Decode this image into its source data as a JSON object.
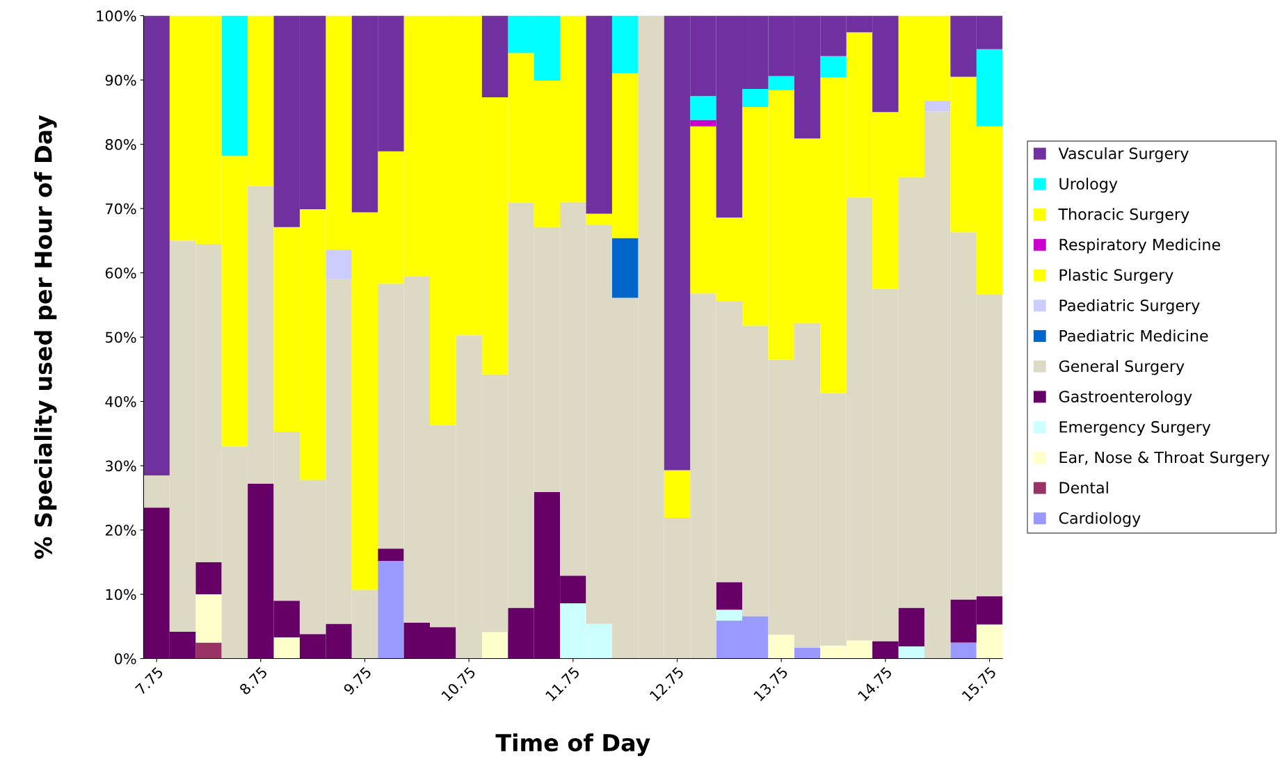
{
  "chart_data": {
    "type": "bar",
    "stacked": true,
    "xlabel": "Time of Day",
    "ylabel": "% Speciality used per Hour of Day",
    "categories": [
      "7.75",
      null,
      null,
      null,
      "8.75",
      null,
      null,
      null,
      "9.75",
      null,
      null,
      null,
      "10.75",
      null,
      null,
      null,
      "11.75",
      null,
      null,
      null,
      "12.75",
      null,
      null,
      null,
      "13.75",
      null,
      null,
      null,
      "14.75",
      null,
      null,
      null,
      "15.75"
    ],
    "ylim": [
      0,
      100
    ],
    "yticks": [
      {
        "value": 0,
        "label": "0%"
      },
      {
        "value": 10,
        "label": "10%"
      },
      {
        "value": 20,
        "label": "20%"
      },
      {
        "value": 30,
        "label": "30%"
      },
      {
        "value": 40,
        "label": "40%"
      },
      {
        "value": 50,
        "label": "50%"
      },
      {
        "value": 60,
        "label": "60%"
      },
      {
        "value": 70,
        "label": "70%"
      },
      {
        "value": 80,
        "label": "80%"
      },
      {
        "value": 90,
        "label": "90%"
      },
      {
        "value": 100,
        "label": "100%"
      }
    ],
    "grid": false,
    "legend": "right",
    "series": [
      {
        "name": "Cardiology",
        "color": "#9999ff",
        "values": [
          0,
          0,
          0,
          0,
          0,
          0,
          0,
          0,
          0,
          15.2,
          0,
          0,
          0,
          0,
          0,
          0,
          0,
          0,
          0,
          0,
          0,
          0,
          5.9,
          6.6,
          0,
          1.7,
          0,
          0,
          0,
          0,
          0,
          2.5,
          0
        ]
      },
      {
        "name": "Dental",
        "color": "#993366",
        "values": [
          0,
          0,
          2.5,
          0,
          0,
          0,
          0,
          0,
          0,
          0,
          0,
          0,
          0,
          0,
          0,
          0,
          0,
          0,
          0,
          0,
          0,
          0,
          0,
          0,
          0,
          0,
          0,
          0,
          0,
          0,
          0,
          0,
          0
        ]
      },
      {
        "name": "Ear, Nose & Throat Surgery",
        "color": "#ffffcc",
        "values": [
          0,
          0,
          7.5,
          0,
          0,
          3.3,
          0,
          0,
          0,
          0,
          0,
          0,
          0,
          4.1,
          0,
          0,
          0,
          0,
          0,
          0,
          0,
          0,
          0,
          0,
          3.7,
          0,
          2,
          2.8,
          0,
          0,
          0,
          0,
          5.3
        ]
      },
      {
        "name": "Emergency Surgery",
        "color": "#ccffff",
        "values": [
          0,
          0,
          0,
          0,
          0,
          0,
          0,
          0,
          0,
          0,
          0,
          0,
          0,
          0,
          0,
          0,
          8.6,
          5.4,
          0,
          0,
          0,
          0,
          1.7,
          0,
          0,
          0,
          0,
          0,
          0,
          1.9,
          0,
          0,
          0
        ]
      },
      {
        "name": "Gastroenterology",
        "color": "#660066",
        "values": [
          23.5,
          4.2,
          5,
          0,
          27.2,
          5.7,
          3.8,
          5.4,
          0,
          1.9,
          5.6,
          4.9,
          0,
          0,
          7.9,
          25.9,
          4.3,
          0,
          0,
          0,
          0,
          0,
          4.3,
          0,
          0,
          0,
          0,
          0,
          2.7,
          6,
          0,
          6.7,
          4.4
        ]
      },
      {
        "name": "General Surgery",
        "color": "#ddd9c4",
        "values": [
          5.0,
          60.8,
          49.5,
          33,
          46.3,
          26.3,
          24,
          53.6,
          10.7,
          41.2,
          53.8,
          31.4,
          50.3,
          40.1,
          63,
          41.2,
          58.1,
          62.1,
          56.1,
          100,
          21.9,
          56.8,
          43.7,
          45.2,
          42.8,
          50.5,
          39.3,
          68.9,
          54.8,
          67,
          85.1,
          57.1,
          46.9
        ]
      },
      {
        "name": "Paediatric Medicine",
        "color": "#0066cc",
        "values": [
          0,
          0,
          0,
          0,
          0,
          0,
          0,
          0,
          0,
          0,
          0,
          0,
          0,
          0,
          0,
          0,
          0,
          0,
          9.3,
          0,
          0,
          0,
          0,
          0,
          0,
          0,
          0,
          0,
          0,
          0,
          0,
          0,
          0
        ]
      },
      {
        "name": "Paediatric Surgery",
        "color": "#ccccff",
        "values": [
          0,
          0,
          0,
          0,
          0,
          0,
          0,
          4.6,
          0,
          0,
          0,
          0,
          0,
          0,
          0,
          0,
          0,
          0,
          0,
          0,
          0,
          0,
          0,
          0,
          0,
          0,
          0,
          0,
          0,
          0,
          1.7,
          0,
          0
        ]
      },
      {
        "name": "Plastic Surgery",
        "color": "#ffff00",
        "values": [
          0,
          35,
          35.5,
          45.2,
          26.5,
          31.8,
          42.1,
          36.4,
          58.7,
          20.6,
          40.6,
          63.7,
          49.7,
          43.1,
          23.3,
          22.8,
          29,
          1.7,
          25.7,
          0,
          7.4,
          26,
          13,
          34,
          41.9,
          28.7,
          49.1,
          25.7,
          27.5,
          25.1,
          13.2,
          24.2,
          26.2
        ]
      },
      {
        "name": "Respiratory Medicine",
        "color": "#cc00cc",
        "values": [
          0,
          0,
          0,
          0,
          0,
          0,
          0,
          0,
          0,
          0,
          0,
          0,
          0,
          0,
          0,
          0,
          0,
          0,
          0,
          0,
          0,
          1,
          0,
          0,
          0,
          0,
          0,
          0,
          0,
          0,
          0,
          0,
          0
        ]
      },
      {
        "name": "Thoracic Surgery",
        "color": "#ffff00",
        "values": [
          0,
          0,
          0,
          0,
          0,
          0,
          0,
          0,
          0,
          0,
          0,
          0,
          0,
          0,
          0,
          0,
          0,
          0,
          0,
          0,
          0,
          0,
          0,
          0,
          0,
          0,
          0,
          0,
          0,
          0,
          0,
          0,
          0
        ]
      },
      {
        "name": "Urology",
        "color": "#00ffff",
        "values": [
          0,
          0,
          0,
          21.8,
          0,
          0,
          0,
          0,
          0,
          0,
          0,
          0,
          0,
          0,
          5.8,
          10.1,
          0,
          0,
          8.9,
          0,
          0,
          3.7,
          0,
          2.8,
          2.2,
          0,
          3.3,
          0,
          0,
          0,
          0,
          0,
          12
        ]
      },
      {
        "name": "Vascular Surgery",
        "color": "#7030a0",
        "values": [
          71.5,
          0,
          0,
          0,
          0,
          32.9,
          30.1,
          0,
          30.6,
          21.1,
          0,
          0,
          0,
          12.7,
          0,
          0,
          0,
          30.8,
          0,
          0,
          70.7,
          12.5,
          31.4,
          11.4,
          9.4,
          19.1,
          6.3,
          2.6,
          15,
          0,
          0,
          9.5,
          5.2
        ]
      }
    ]
  }
}
